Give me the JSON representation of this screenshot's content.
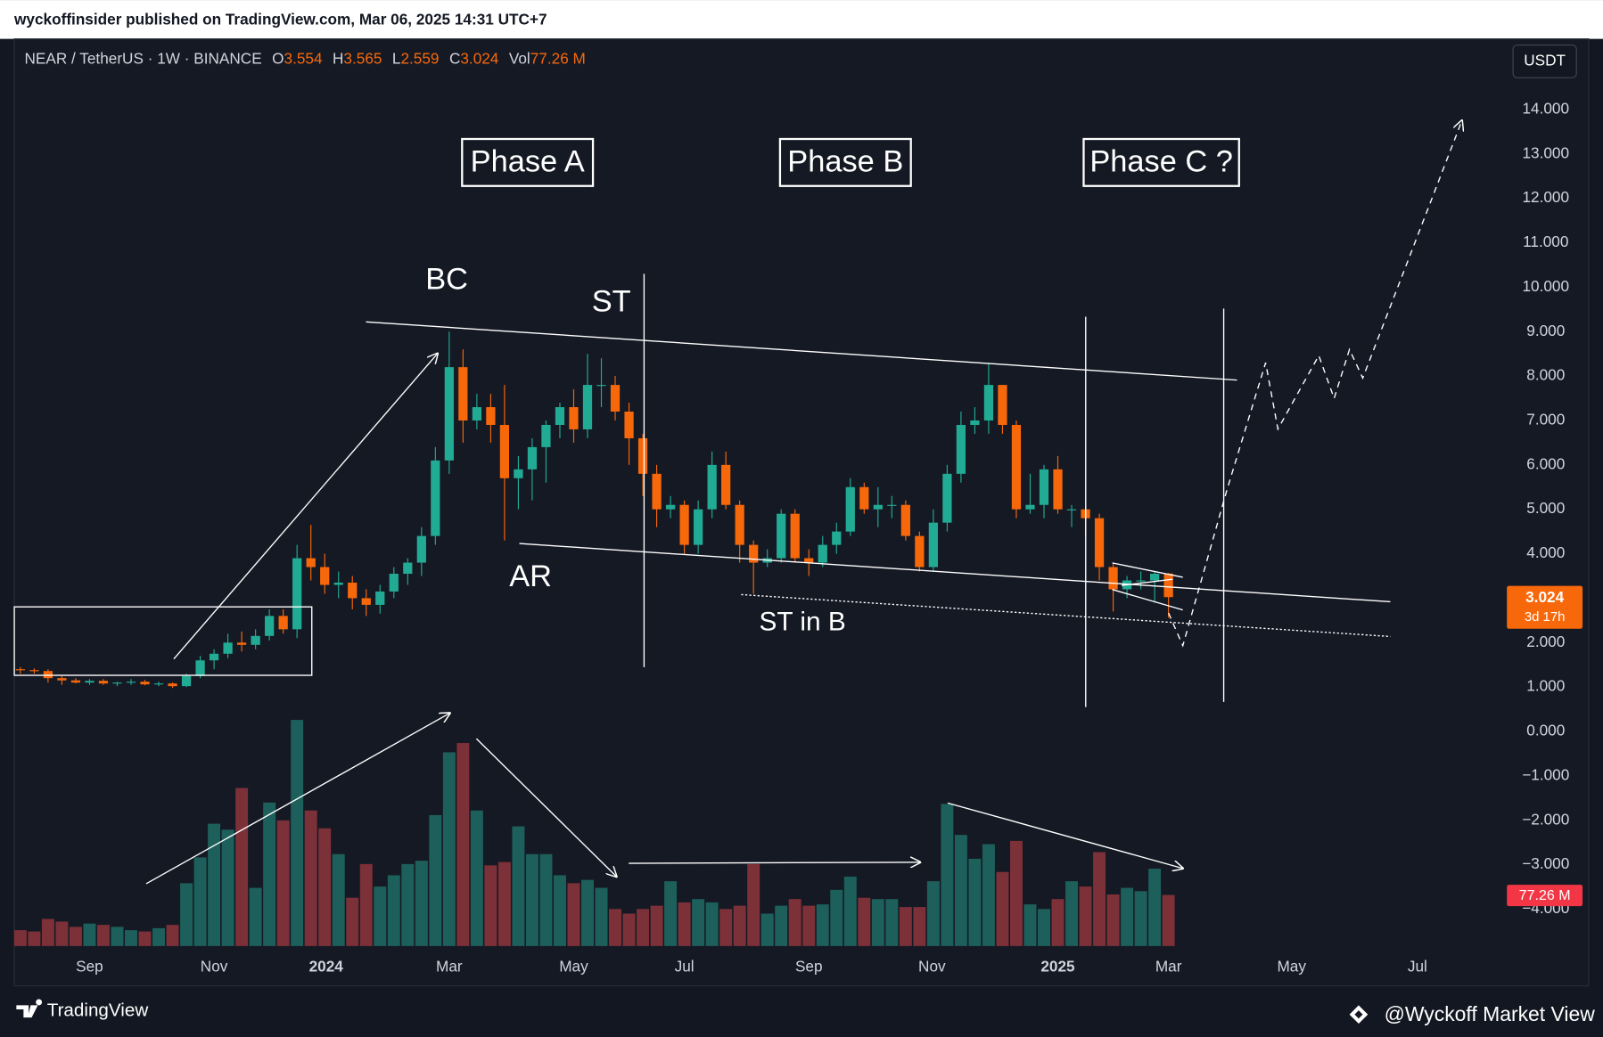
{
  "header": {
    "publisher": "wyckoffinsider published on TradingView.com, Mar 06, 2025 14:31 UTC+7",
    "currency_button": "USDT"
  },
  "footer": {
    "brand": "TradingView",
    "credit": "@Wyckoff Market View"
  },
  "chart_data": {
    "type": "candlestick",
    "symbol": "NEAR / TetherUS · 1W · BINANCE",
    "ohlc_prefixes": [
      "O",
      "H",
      "L",
      "C"
    ],
    "volume_prefix": "Vol",
    "last_volume_label": "77.26 M",
    "countdown": "3d 17h",
    "annotations": [
      "Phase A",
      "Phase B",
      "Phase C ?",
      "BC",
      "ST",
      "AR",
      "ST in B"
    ],
    "open": [
      1.4,
      1.38,
      1.36,
      1.2,
      1.15,
      1.1,
      1.14,
      1.08,
      1.1,
      1.12,
      1.06,
      1.08,
      1.02,
      1.25,
      1.6,
      1.75,
      2.0,
      1.95,
      2.15,
      2.6,
      2.3,
      3.9,
      3.7,
      3.3,
      3.35,
      3.0,
      2.85,
      3.15,
      3.55,
      3.8,
      4.4,
      6.1,
      8.2,
      7.0,
      7.3,
      6.9,
      5.7,
      5.9,
      6.4,
      6.9,
      7.3,
      6.8,
      7.8,
      7.8,
      7.2,
      6.6,
      5.8,
      5.0,
      5.1,
      4.2,
      5.0,
      6.0,
      5.1,
      4.2,
      3.8,
      3.9,
      4.9,
      3.9,
      3.8,
      4.2,
      4.5,
      5.5,
      5.0,
      5.1,
      5.1,
      4.4,
      3.7,
      4.7,
      5.8,
      6.9,
      7.0,
      7.8,
      6.9,
      5.0,
      5.1,
      5.9,
      5.0,
      5.0,
      4.8,
      3.7,
      3.2,
      3.4,
      3.4,
      3.554
    ],
    "high": [
      1.45,
      1.42,
      1.4,
      1.25,
      1.2,
      1.18,
      1.18,
      1.12,
      1.18,
      1.16,
      1.12,
      1.1,
      1.3,
      1.7,
      1.85,
      2.2,
      2.25,
      2.3,
      2.75,
      2.75,
      4.2,
      4.65,
      4.0,
      3.6,
      3.5,
      3.2,
      3.3,
      3.7,
      3.9,
      4.6,
      6.4,
      9.0,
      8.6,
      7.6,
      7.6,
      7.8,
      6.2,
      6.6,
      7.0,
      7.4,
      7.7,
      8.5,
      8.4,
      8.0,
      7.4,
      6.7,
      6.0,
      5.3,
      5.2,
      5.2,
      6.3,
      6.3,
      5.2,
      4.3,
      4.1,
      5.0,
      5.0,
      4.1,
      4.4,
      4.7,
      5.7,
      5.6,
      5.5,
      5.3,
      5.2,
      4.5,
      5.0,
      6.0,
      7.2,
      7.3,
      8.3,
      7.8,
      7.0,
      5.8,
      6.0,
      6.2,
      5.1,
      5.0,
      4.9,
      3.8,
      3.5,
      3.6,
      3.6,
      3.565
    ],
    "low": [
      1.3,
      1.3,
      1.1,
      1.05,
      1.08,
      1.05,
      1.05,
      1.02,
      1.05,
      1.04,
      1.02,
      0.98,
      1.0,
      1.2,
      1.4,
      1.65,
      1.8,
      1.85,
      2.05,
      2.2,
      2.1,
      3.4,
      3.1,
      3.0,
      2.75,
      2.6,
      2.65,
      3.0,
      3.3,
      3.5,
      4.2,
      5.8,
      6.5,
      6.8,
      6.5,
      4.3,
      5.0,
      5.2,
      5.6,
      6.6,
      6.5,
      6.6,
      7.3,
      7.0,
      6.0,
      5.3,
      4.6,
      4.8,
      4.0,
      4.0,
      4.8,
      5.0,
      3.8,
      3.1,
      3.7,
      3.8,
      3.8,
      3.5,
      3.7,
      4.0,
      4.4,
      4.9,
      4.6,
      4.8,
      4.3,
      3.6,
      3.6,
      4.5,
      5.6,
      6.7,
      6.7,
      6.7,
      4.8,
      4.9,
      4.8,
      4.9,
      4.6,
      4.4,
      3.4,
      2.7,
      3.0,
      3.2,
      2.9,
      2.559
    ],
    "close": [
      1.38,
      1.36,
      1.2,
      1.15,
      1.1,
      1.14,
      1.08,
      1.1,
      1.12,
      1.06,
      1.08,
      1.02,
      1.25,
      1.6,
      1.75,
      2.0,
      1.95,
      2.15,
      2.6,
      2.3,
      3.9,
      3.7,
      3.3,
      3.35,
      3.0,
      2.85,
      3.15,
      3.55,
      3.8,
      4.4,
      6.1,
      8.2,
      7.0,
      7.3,
      6.9,
      5.7,
      5.9,
      6.4,
      6.9,
      7.3,
      6.8,
      7.8,
      7.8,
      7.2,
      6.6,
      5.8,
      5.0,
      5.1,
      4.2,
      5.0,
      6.0,
      5.1,
      4.2,
      3.8,
      3.9,
      4.9,
      3.9,
      3.8,
      4.2,
      4.5,
      5.5,
      5.0,
      5.1,
      5.1,
      4.4,
      3.7,
      4.7,
      5.8,
      6.9,
      7.0,
      7.8,
      6.9,
      5.0,
      5.1,
      5.9,
      5.0,
      5.0,
      4.8,
      3.7,
      3.2,
      3.4,
      3.4,
      3.55,
      3.024
    ],
    "volume": [
      24,
      22,
      41,
      37,
      29,
      34,
      32,
      29,
      24,
      22,
      27,
      32,
      95,
      134,
      185,
      176,
      239,
      88,
      217,
      190,
      342,
      205,
      178,
      139,
      73,
      124,
      90,
      107,
      124,
      129,
      198,
      293,
      307,
      205,
      122,
      127,
      181,
      139,
      139,
      107,
      95,
      100,
      88,
      56,
      49,
      56,
      61,
      98,
      66,
      71,
      66,
      56,
      61,
      124,
      49,
      61,
      71,
      61,
      63,
      85,
      105,
      73,
      71,
      71,
      59,
      59,
      98,
      215,
      168,
      132,
      154,
      112,
      159,
      63,
      56,
      71,
      98,
      90,
      142,
      78,
      88,
      83,
      117,
      77.26
    ],
    "up_color": "#22ab94",
    "down_color": "#f7680b",
    "volume_up_color": "#1d5f5a",
    "volume_down_color": "#7c3038",
    "xlim": [
      -0.44,
      106.8
    ],
    "xticks": [
      {
        "value": 5,
        "label": "Sep"
      },
      {
        "value": 14,
        "label": "Nov"
      },
      {
        "value": 22.1,
        "label": "2024"
      },
      {
        "value": 31,
        "label": "Mar"
      },
      {
        "value": 40,
        "label": "May"
      },
      {
        "value": 48,
        "label": "Jul"
      },
      {
        "value": 57,
        "label": "Sep"
      },
      {
        "value": 65.9,
        "label": "Nov"
      },
      {
        "value": 75,
        "label": "2025"
      },
      {
        "value": 83,
        "label": "Mar"
      },
      {
        "value": 91.9,
        "label": "May"
      },
      {
        "value": 101,
        "label": "Jul"
      }
    ],
    "ylim": [
      -4.83,
      15.59
    ],
    "yticks": [
      {
        "value": 14,
        "label": "14.000"
      },
      {
        "value": 13,
        "label": "13.000"
      },
      {
        "value": 12,
        "label": "12.000"
      },
      {
        "value": 11,
        "label": "11.000"
      },
      {
        "value": 10,
        "label": "10.000"
      },
      {
        "value": 9,
        "label": "9.000"
      },
      {
        "value": 8,
        "label": "8.000"
      },
      {
        "value": 7,
        "label": "7.000"
      },
      {
        "value": 6,
        "label": "6.000"
      },
      {
        "value": 5,
        "label": "5.000"
      },
      {
        "value": 4,
        "label": "4.000"
      },
      {
        "value": 3,
        "label": "3.000"
      },
      {
        "value": 2,
        "label": "2.000"
      },
      {
        "value": 1,
        "label": "1.000"
      },
      {
        "value": 0,
        "label": "0.000"
      },
      {
        "value": -1,
        "label": "−1.000"
      },
      {
        "value": -2,
        "label": "−2.000"
      },
      {
        "value": -3,
        "label": "−3.000"
      },
      {
        "value": -4,
        "label": "−4.000"
      }
    ],
    "volume_ylim": [
      0,
      1372
    ],
    "grid": false
  }
}
